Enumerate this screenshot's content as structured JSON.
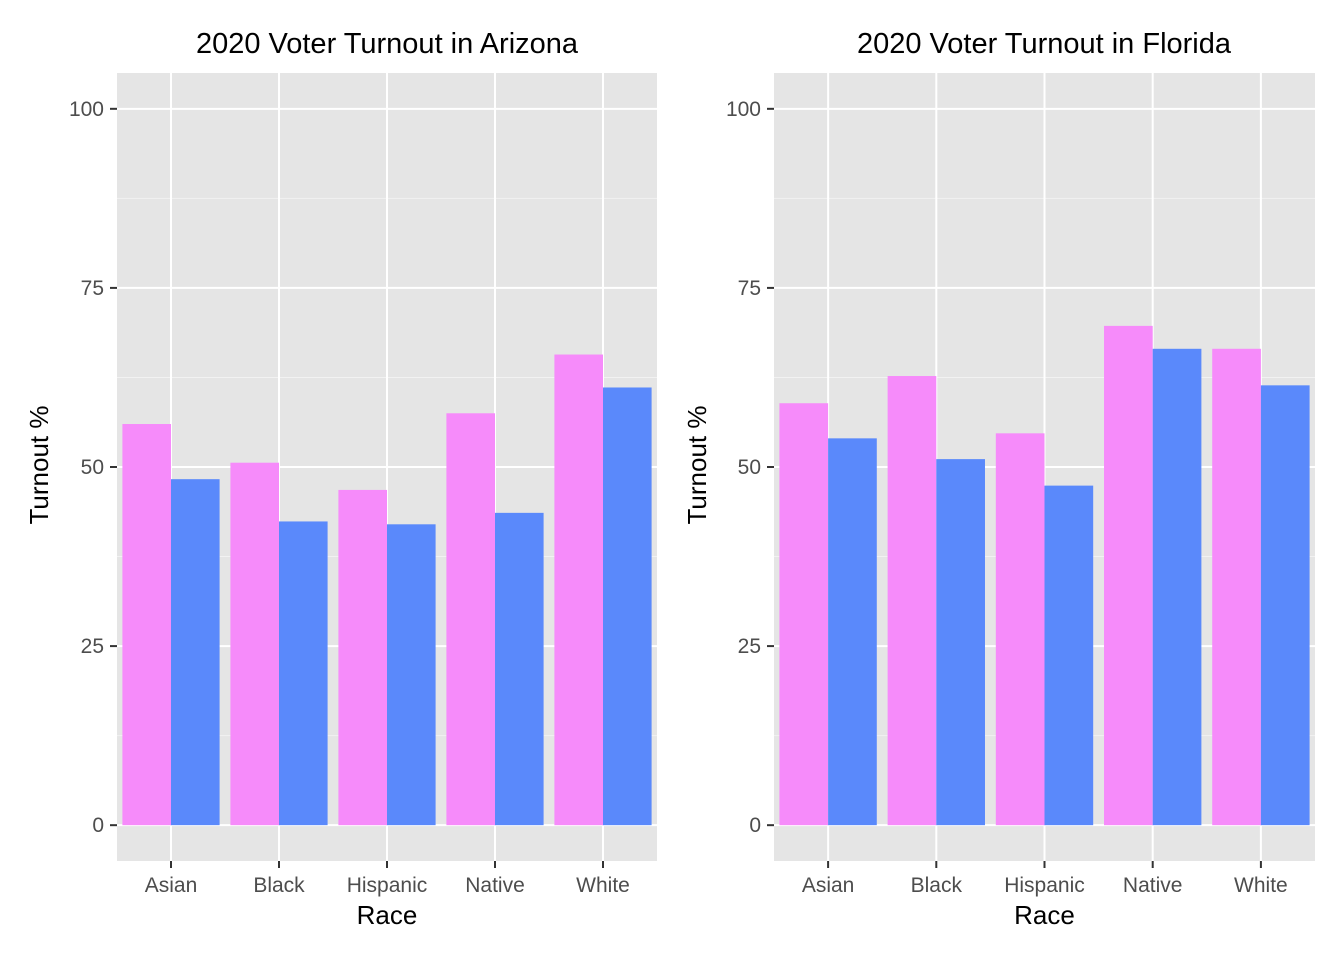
{
  "chart_data": [
    {
      "type": "bar",
      "title": "2020 Voter Turnout in Arizona",
      "xlabel": "Race",
      "ylabel": "Turnout %",
      "categories": [
        "Asian",
        "Black",
        "Hispanic",
        "Native",
        "White"
      ],
      "series": [
        {
          "color": "#f68bfa",
          "values": [
            56.0,
            50.6,
            46.8,
            57.5,
            65.7
          ]
        },
        {
          "color": "#5a89fb",
          "values": [
            48.3,
            42.4,
            42.0,
            43.6,
            61.1
          ]
        }
      ],
      "ylim": [
        -5,
        105
      ],
      "yticks": [
        0,
        25,
        50,
        75,
        100
      ],
      "grid": true,
      "legend": "none"
    },
    {
      "type": "bar",
      "title": "2020 Voter Turnout in Florida",
      "xlabel": "Race",
      "ylabel": "Turnout %",
      "categories": [
        "Asian",
        "Black",
        "Hispanic",
        "Native",
        "White"
      ],
      "series": [
        {
          "color": "#f68bfa",
          "values": [
            58.9,
            62.7,
            54.7,
            69.7,
            66.5
          ]
        },
        {
          "color": "#5a89fb",
          "values": [
            54.0,
            51.1,
            47.4,
            66.5,
            61.4
          ]
        }
      ],
      "ylim": [
        -5,
        105
      ],
      "yticks": [
        0,
        25,
        50,
        75,
        100
      ],
      "grid": true,
      "legend": "none"
    }
  ]
}
